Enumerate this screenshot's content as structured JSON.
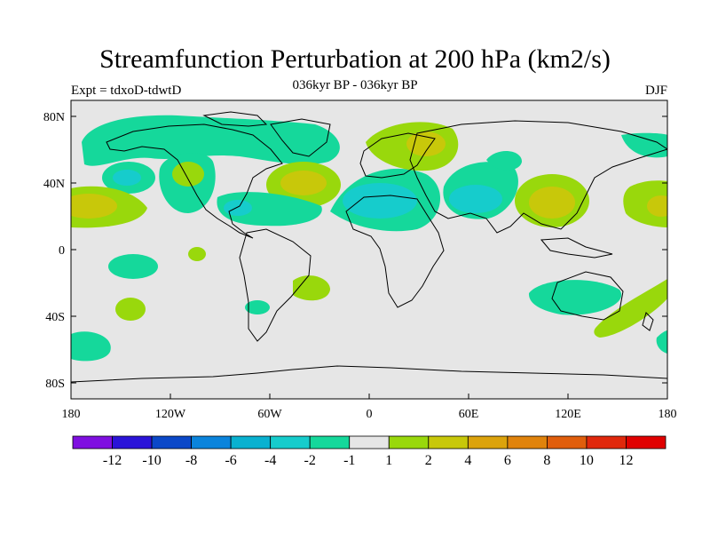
{
  "title": "Streamfunction Perturbation at 200 hPa (km2/s)",
  "subtitle": "036kyr BP - 036kyr BP",
  "left_label": "Expt = tdxoD-tdwtD",
  "right_label": "DJF",
  "lat_ticks": [
    "80N",
    "40N",
    "0",
    "40S",
    "80S"
  ],
  "lon_ticks": [
    "180",
    "120W",
    "60W",
    "0",
    "60E",
    "120E",
    "180"
  ],
  "colorbar": {
    "colors": [
      "#7f0fe0",
      "#2b14d8",
      "#0b48c8",
      "#0b84dc",
      "#09b1d0",
      "#16cccc",
      "#15d89b",
      "#e6e6e6",
      "#99d80c",
      "#c8c80a",
      "#dca30c",
      "#e0830c",
      "#e05e0c",
      "#e0280c",
      "#e00000"
    ],
    "labels": [
      "-12",
      "-10",
      "-8",
      "-6",
      "-4",
      "-2",
      "-1",
      "1",
      "2",
      "4",
      "6",
      "8",
      "10",
      "12"
    ]
  },
  "colors": {
    "neutral": "#e6e6e6",
    "coast": "#000000"
  }
}
